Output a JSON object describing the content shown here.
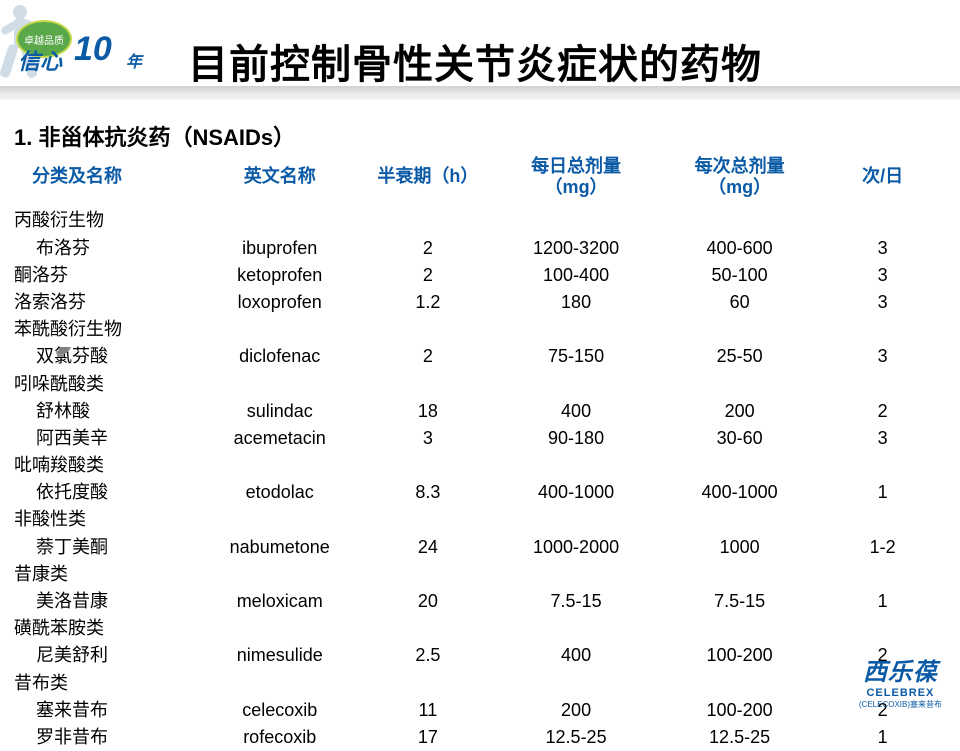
{
  "header": {
    "logo_oval_text": "卓越品质",
    "logo_main": "信心",
    "logo_ten": "10",
    "logo_year": "年",
    "page_title": "目前控制骨性关节炎症状的药物"
  },
  "section": {
    "title": "1. 非甾体抗炎药（NSAIDs）"
  },
  "table": {
    "columns": [
      {
        "key": "name_cn",
        "label": "分类及名称"
      },
      {
        "key": "name_en",
        "label": "英文名称"
      },
      {
        "key": "half_life",
        "label": "半衰期（h）"
      },
      {
        "key": "daily_dose",
        "label": "每日总剂量\n（mg）"
      },
      {
        "key": "per_dose",
        "label": "每次总剂量\n（mg）"
      },
      {
        "key": "freq",
        "label": "次/日"
      }
    ],
    "rows": [
      {
        "type": "group",
        "name_cn": "丙酸衍生物"
      },
      {
        "type": "drug",
        "indent": true,
        "name_cn": "布洛芬",
        "name_en": "ibuprofen",
        "half_life": "2",
        "daily_dose": "1200-3200",
        "per_dose": "400-600",
        "freq": "3"
      },
      {
        "type": "drug",
        "indent": false,
        "name_cn": "酮洛芬",
        "name_en": "ketoprofen",
        "half_life": "2",
        "daily_dose": "100-400",
        "per_dose": "50-100",
        "freq": "3"
      },
      {
        "type": "drug",
        "indent": false,
        "name_cn": "洛索洛芬",
        "name_en": "loxoprofen",
        "half_life": "1.2",
        "daily_dose": "180",
        "per_dose": "60",
        "freq": "3"
      },
      {
        "type": "group",
        "name_cn": "苯酰酸衍生物"
      },
      {
        "type": "drug",
        "indent": true,
        "name_cn": "双氯芬酸",
        "name_en": "diclofenac",
        "half_life": "2",
        "daily_dose": "75-150",
        "per_dose": "25-50",
        "freq": "3"
      },
      {
        "type": "group",
        "name_cn": "吲哚酰酸类"
      },
      {
        "type": "drug",
        "indent": true,
        "name_cn": "舒林酸",
        "name_en": "sulindac",
        "half_life": "18",
        "daily_dose": "400",
        "per_dose": "200",
        "freq": "2"
      },
      {
        "type": "drug",
        "indent": true,
        "name_cn": "阿西美辛",
        "name_en": "acemetacin",
        "half_life": "3",
        "daily_dose": "90-180",
        "per_dose": "30-60",
        "freq": "3"
      },
      {
        "type": "group",
        "name_cn": "吡喃羧酸类"
      },
      {
        "type": "drug",
        "indent": true,
        "name_cn": "依托度酸",
        "name_en": "etodolac",
        "half_life": "8.3",
        "daily_dose": "400-1000",
        "per_dose": "400-1000",
        "freq": "1"
      },
      {
        "type": "group",
        "name_cn": "非酸性类"
      },
      {
        "type": "drug",
        "indent": true,
        "name_cn": "萘丁美酮",
        "name_en": "nabumetone",
        "half_life": "24",
        "daily_dose": "1000-2000",
        "per_dose": "1000",
        "freq": "1-2"
      },
      {
        "type": "group",
        "name_cn": "昔康类"
      },
      {
        "type": "drug",
        "indent": true,
        "name_cn": "美洛昔康",
        "name_en": "meloxicam",
        "half_life": "20",
        "daily_dose": "7.5-15",
        "per_dose": "7.5-15",
        "freq": "1"
      },
      {
        "type": "group",
        "name_cn": "磺酰苯胺类"
      },
      {
        "type": "drug",
        "indent": true,
        "name_cn": "尼美舒利",
        "name_en": "nimesulide",
        "half_life": "2.5",
        "daily_dose": "400",
        "per_dose": "100-200",
        "freq": "2"
      },
      {
        "type": "group",
        "name_cn": "昔布类"
      },
      {
        "type": "drug",
        "indent": true,
        "name_cn": "塞来昔布",
        "name_en": "celecoxib",
        "half_life": "11",
        "daily_dose": "200",
        "per_dose": "100-200",
        "freq": "2"
      },
      {
        "type": "drug",
        "indent": true,
        "name_cn": "罗非昔布",
        "name_en": "rofecoxib",
        "half_life": "17",
        "daily_dose": "12.5-25",
        "per_dose": "12.5-25",
        "freq": "1"
      }
    ]
  },
  "brand": {
    "cn": "西乐葆",
    "en": "CELEBREX",
    "sub": "(CELECOXIB)塞来昔布"
  },
  "style": {
    "header_color": "#0b5aa6",
    "text_color": "#000000",
    "background": "#ffffff",
    "title_fontsize": 40,
    "section_fontsize": 22,
    "table_fontsize": 18
  }
}
